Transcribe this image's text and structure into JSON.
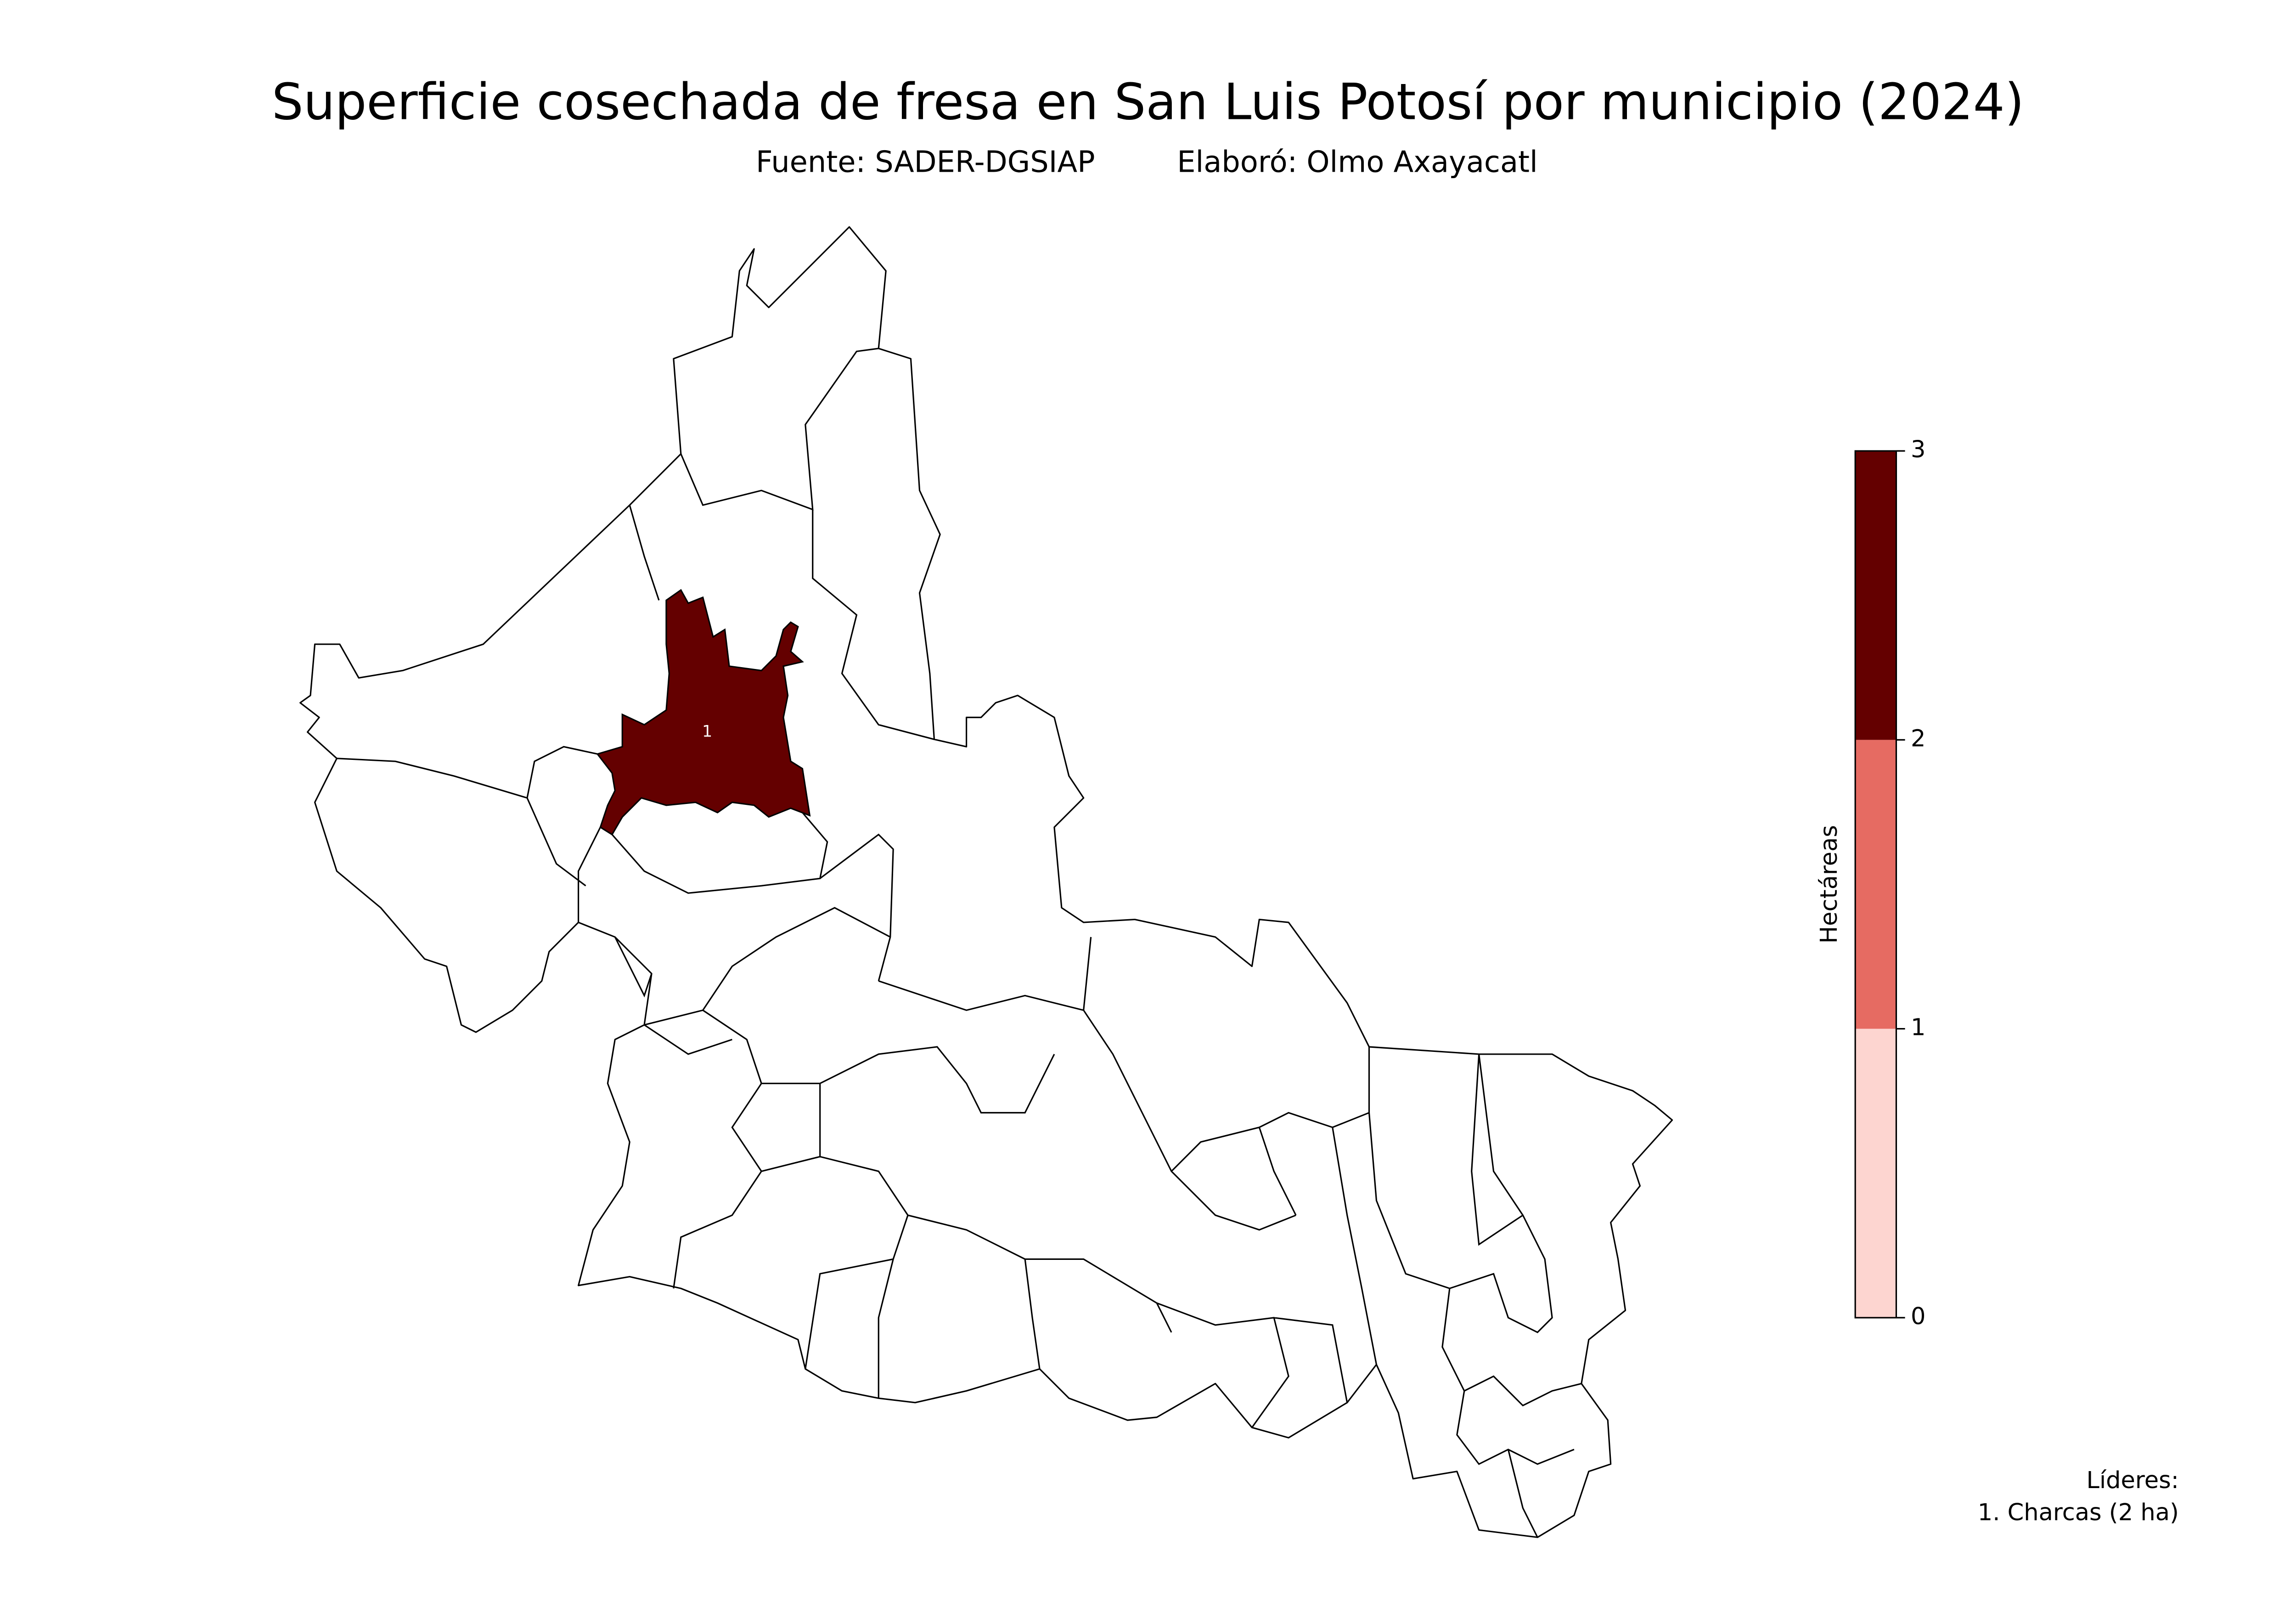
{
  "chart_data": {
    "type": "choropleth",
    "title": "Superficie cosechada de fresa en San Luis Potosí por municipio (2024)",
    "subtitle": {
      "source": "Fuente: SADER-DGSIAP",
      "author": "Elaboró: Olmo Axayacatl"
    },
    "regions": [
      {
        "label": "1",
        "value": 2
      }
    ],
    "colorbar": {
      "label": "Hectáreas",
      "lim": [
        0,
        3
      ],
      "ticks": [
        0,
        1,
        2,
        3
      ],
      "colors": [
        "#fdd5d0",
        "#e66b62",
        "#640000"
      ]
    },
    "leaders": {
      "title": "Líderes:",
      "entries": [
        "1. Charcas (2 ha)"
      ]
    }
  }
}
